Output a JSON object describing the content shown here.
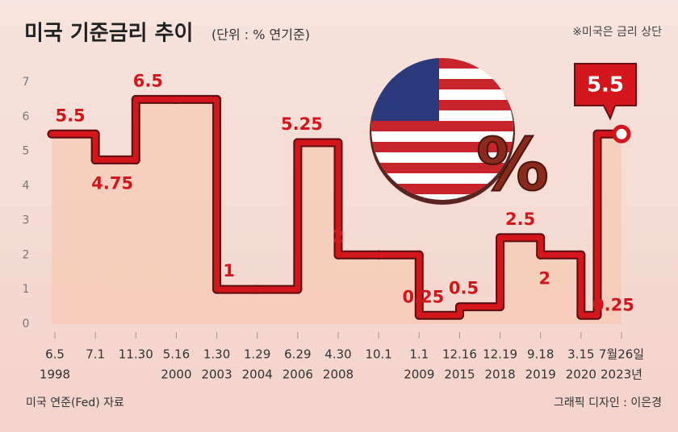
{
  "title": "미국 기준금리 추이",
  "subtitle": "(단위 : % 연기준)",
  "note": "※미국은 금리 상단",
  "source": "미국 연준(Fed) 자료",
  "credit": "그래픽 디자인 : 이은경",
  "illustration_label": "%",
  "chart_data": {
    "type": "step-line",
    "categories": [
      "6.5",
      "7.1",
      "11.30",
      "5.16",
      "1.30",
      "1.29",
      "6.29",
      "4.30",
      "10.1",
      "1.1",
      "12.16",
      "12.19",
      "9.18",
      "3.15",
      "7월26일"
    ],
    "years": [
      "1998",
      null,
      null,
      "2000",
      "2003",
      "2004",
      "2006",
      "2008",
      null,
      "2009",
      "2015",
      "2018",
      "2019",
      "2020",
      "2023년"
    ],
    "values": [
      5.5,
      4.75,
      6.5,
      6.5,
      1,
      1,
      5.25,
      2,
      2,
      0.25,
      0.5,
      2.5,
      2,
      0.25,
      5.5
    ],
    "value_labels": [
      "5.5",
      "4.75",
      "6.5",
      null,
      "1",
      null,
      "5.25",
      "2",
      null,
      "0.25",
      "0.5",
      "2.5",
      "2",
      "0.25",
      "5.5"
    ],
    "color": "#d3161c",
    "ylim": [
      0,
      7
    ],
    "yticks": [
      0,
      1,
      2,
      3,
      4,
      5,
      6,
      7
    ]
  }
}
